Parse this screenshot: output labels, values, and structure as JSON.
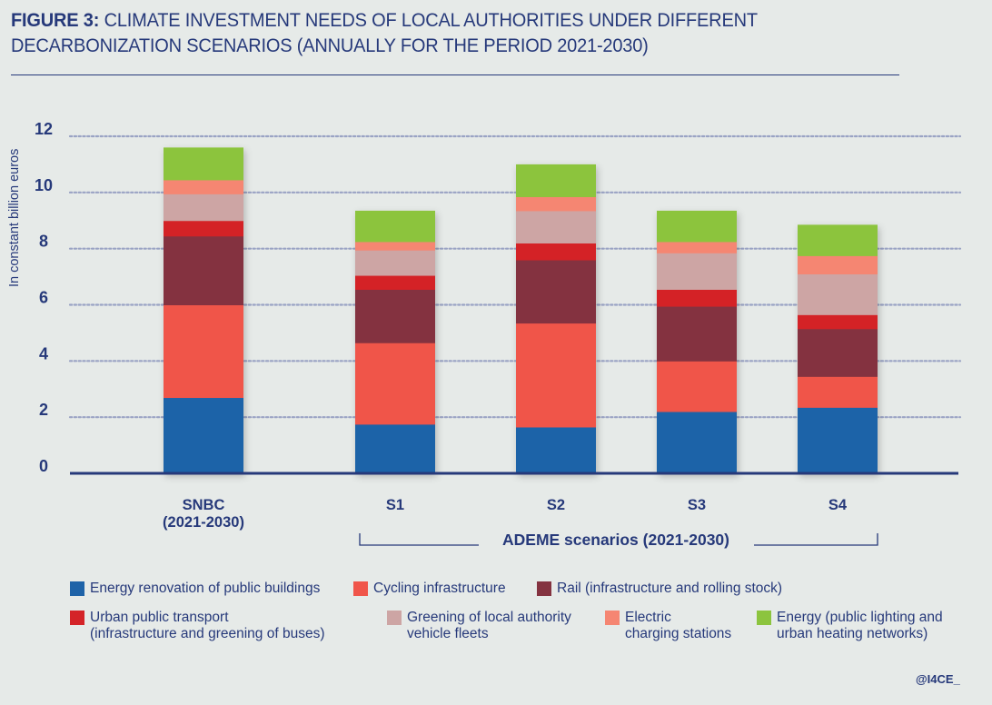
{
  "title": {
    "figure_label": "FIGURE 3:",
    "line1_rest": " CLIMATE INVESTMENT NEEDS OF LOCAL AUTHORITIES UNDER  DIFFERENT",
    "line2": "DECARBONIZATION SCENARIOS (ANNUALLY FOR THE PERIOD 2021-2030)"
  },
  "credit": "@I4CE_",
  "chart_data": {
    "type": "bar",
    "stacked": true,
    "title": "CLIMATE INVESTMENT NEEDS OF LOCAL AUTHORITIES UNDER DIFFERENT DECARBONIZATION SCENARIOS (ANNUALLY FOR THE PERIOD 2021-2030)",
    "xlabel": "",
    "ylabel": "In constant billion euros",
    "ylim": [
      0,
      12
    ],
    "yticks": [
      0,
      2,
      4,
      6,
      8,
      10,
      12
    ],
    "grid": true,
    "legend_position": "bottom",
    "categories": [
      "SNBC\n(2021-2030)",
      "S1",
      "S2",
      "S3",
      "S4"
    ],
    "category_lines": [
      [
        "SNBC",
        "(2021-2030)"
      ],
      [
        "S1"
      ],
      [
        "S2"
      ],
      [
        "S3"
      ],
      [
        "S4"
      ]
    ],
    "group_annotation": {
      "label": "ADEME scenarios (2021-2030)",
      "spans": [
        "S1",
        "S4"
      ]
    },
    "series": [
      {
        "name": "Energy renovation of public buildings",
        "color": "#1e63a8",
        "values": [
          2.7,
          1.75,
          1.65,
          2.2,
          2.35
        ]
      },
      {
        "name": "Cycling infrastructure",
        "color": "#f0554a",
        "values": [
          3.3,
          2.9,
          3.7,
          1.8,
          1.1
        ]
      },
      {
        "name": "Rail (infrastructure and rolling stock)",
        "color": "#843340",
        "values": [
          2.45,
          1.9,
          2.25,
          1.95,
          1.7
        ]
      },
      {
        "name": "Urban public transport (infrastructure and greening of buses)",
        "color": "#d42428",
        "values": [
          0.55,
          0.5,
          0.6,
          0.6,
          0.5
        ]
      },
      {
        "name": "Greening of local authority vehicle fleets",
        "color": "#cda5a4",
        "values": [
          0.95,
          0.9,
          1.15,
          1.3,
          1.45
        ]
      },
      {
        "name": "Electric charging stations",
        "color": "#f58672",
        "values": [
          0.5,
          0.3,
          0.5,
          0.4,
          0.65
        ]
      },
      {
        "name": "Energy (public lighting and urban heating networks)",
        "color": "#8cc43e",
        "values": [
          1.15,
          1.1,
          1.15,
          1.1,
          1.1
        ]
      }
    ]
  },
  "legend": [
    {
      "label": "Energy renovation of public buildings",
      "color": "#1e63a8"
    },
    {
      "label": "Cycling infrastructure",
      "color": "#f0554a"
    },
    {
      "label": "Rail (infrastructure and rolling stock)",
      "color": "#843340"
    },
    {
      "label": "Urban public transport\n(infrastructure and greening of buses)",
      "color": "#d42428"
    },
    {
      "label": "Greening of local authority\nvehicle fleets",
      "color": "#cda5a4"
    },
    {
      "label": "Electric\ncharging stations",
      "color": "#f58672"
    },
    {
      "label": "Energy (public lighting and\nurban heating networks)",
      "color": "#8cc43e"
    }
  ]
}
